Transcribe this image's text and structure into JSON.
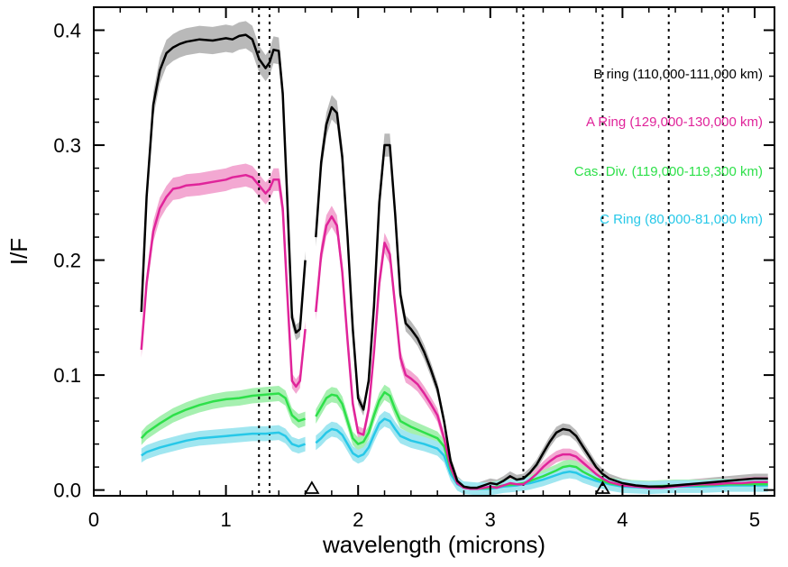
{
  "chart_data": {
    "type": "line",
    "xlabel": "wavelength (microns)",
    "ylabel": "I/F",
    "xlim": [
      0,
      5.15
    ],
    "ylim": [
      -0.005,
      0.42
    ],
    "x_ticks": [
      0,
      1,
      2,
      3,
      4,
      5
    ],
    "x_tick_labels": [
      "0",
      "1",
      "2",
      "3",
      "4",
      "5"
    ],
    "y_ticks": [
      0.0,
      0.1,
      0.2,
      0.3,
      0.4
    ],
    "y_tick_labels": [
      "0.0",
      "0.1",
      "0.2",
      "0.3",
      "0.4"
    ],
    "grid": false,
    "legend_position": "top-right",
    "vertical_dotted_lines_x": [
      1.25,
      1.33,
      3.25,
      3.85,
      4.35,
      4.76
    ],
    "triangle_markers_x": [
      1.65,
      3.85
    ],
    "series": [
      {
        "name": "B ring (110,000-111,000 km)",
        "color": "#000000",
        "band_color": "#b9b9b9",
        "x": [
          0.36,
          0.4,
          0.45,
          0.5,
          0.55,
          0.6,
          0.65,
          0.7,
          0.8,
          0.9,
          1.0,
          1.05,
          1.1,
          1.15,
          1.2,
          1.25,
          1.3,
          1.33,
          1.36,
          1.4,
          1.43,
          1.46,
          1.5,
          1.53,
          1.56,
          1.6,
          null,
          1.68,
          1.72,
          1.76,
          1.8,
          1.84,
          1.88,
          1.92,
          1.96,
          2.0,
          2.04,
          2.08,
          2.12,
          2.16,
          2.2,
          2.24,
          2.28,
          2.32,
          2.36,
          2.4,
          2.45,
          2.5,
          2.55,
          2.6,
          2.65,
          2.7,
          2.75,
          2.8,
          2.85,
          2.9,
          2.95,
          3.0,
          3.05,
          3.1,
          3.15,
          3.2,
          3.25,
          3.3,
          3.35,
          3.4,
          3.45,
          3.5,
          3.55,
          3.6,
          3.65,
          3.7,
          3.75,
          3.8,
          3.85,
          3.9,
          4.0,
          4.1,
          4.2,
          4.3,
          4.4,
          4.5,
          4.6,
          4.7,
          4.8,
          4.9,
          5.0,
          5.1
        ],
        "y": [
          0.155,
          0.255,
          0.335,
          0.365,
          0.38,
          0.385,
          0.388,
          0.39,
          0.392,
          0.391,
          0.393,
          0.392,
          0.395,
          0.396,
          0.392,
          0.375,
          0.367,
          0.372,
          0.383,
          0.382,
          0.345,
          0.265,
          0.15,
          0.137,
          0.14,
          0.2,
          null,
          0.22,
          0.285,
          0.318,
          0.333,
          0.328,
          0.29,
          0.22,
          0.14,
          0.08,
          0.07,
          0.095,
          0.16,
          0.25,
          0.3,
          0.3,
          0.24,
          0.17,
          0.145,
          0.14,
          0.132,
          0.12,
          0.105,
          0.088,
          0.06,
          0.025,
          0.008,
          0.003,
          0.002,
          0.002,
          0.004,
          0.006,
          0.005,
          0.008,
          0.012,
          0.009,
          0.01,
          0.015,
          0.022,
          0.032,
          0.042,
          0.05,
          0.053,
          0.052,
          0.047,
          0.038,
          0.029,
          0.02,
          0.014,
          0.01,
          0.006,
          0.004,
          0.003,
          0.003,
          0.004,
          0.005,
          0.006,
          0.007,
          0.008,
          0.009,
          0.01,
          0.01
        ]
      },
      {
        "name": "A Ring (129,000-130,000 km)",
        "color": "#e0249a",
        "band_color": "#f3a8d2",
        "x": [
          0.36,
          0.4,
          0.45,
          0.5,
          0.55,
          0.6,
          0.65,
          0.7,
          0.8,
          0.9,
          1.0,
          1.05,
          1.1,
          1.15,
          1.2,
          1.25,
          1.3,
          1.33,
          1.36,
          1.4,
          1.43,
          1.46,
          1.5,
          1.53,
          1.56,
          1.6,
          null,
          1.68,
          1.72,
          1.76,
          1.8,
          1.84,
          1.88,
          1.92,
          1.96,
          2.0,
          2.04,
          2.08,
          2.12,
          2.16,
          2.2,
          2.24,
          2.28,
          2.32,
          2.36,
          2.4,
          2.45,
          2.5,
          2.55,
          2.6,
          2.65,
          2.7,
          2.75,
          2.8,
          2.85,
          2.9,
          2.95,
          3.0,
          3.05,
          3.1,
          3.15,
          3.2,
          3.25,
          3.3,
          3.35,
          3.4,
          3.45,
          3.5,
          3.55,
          3.6,
          3.65,
          3.7,
          3.75,
          3.8,
          3.85,
          3.9,
          4.0,
          4.1,
          4.2,
          4.3,
          4.4,
          4.5,
          4.6,
          4.7,
          4.8,
          4.9,
          5.0,
          5.1
        ],
        "y": [
          0.122,
          0.18,
          0.225,
          0.245,
          0.255,
          0.262,
          0.263,
          0.265,
          0.266,
          0.268,
          0.27,
          0.272,
          0.273,
          0.274,
          0.272,
          0.265,
          0.258,
          0.262,
          0.27,
          0.27,
          0.245,
          0.18,
          0.095,
          0.09,
          0.095,
          0.14,
          null,
          0.155,
          0.205,
          0.23,
          0.238,
          0.23,
          0.19,
          0.13,
          0.075,
          0.05,
          0.048,
          0.07,
          0.12,
          0.18,
          0.215,
          0.205,
          0.16,
          0.115,
          0.1,
          0.097,
          0.092,
          0.084,
          0.075,
          0.065,
          0.045,
          0.02,
          0.006,
          0.002,
          0.001,
          0.001,
          0.002,
          0.003,
          0.002,
          0.004,
          0.006,
          0.005,
          0.005,
          0.009,
          0.014,
          0.02,
          0.025,
          0.029,
          0.031,
          0.031,
          0.029,
          0.024,
          0.019,
          0.014,
          0.01,
          0.007,
          0.004,
          0.003,
          0.002,
          0.002,
          0.003,
          0.004,
          0.005,
          0.005,
          0.006,
          0.006,
          0.007,
          0.007
        ]
      },
      {
        "name": "Cas. Div. (119,000-119,300 km)",
        "color": "#2ee04a",
        "band_color": "#a6f0b0",
        "x": [
          0.36,
          0.4,
          0.5,
          0.6,
          0.7,
          0.8,
          0.9,
          1.0,
          1.1,
          1.2,
          1.3,
          1.4,
          1.45,
          1.5,
          1.55,
          1.6,
          null,
          1.68,
          1.72,
          1.76,
          1.8,
          1.84,
          1.88,
          1.92,
          1.96,
          2.0,
          2.04,
          2.08,
          2.12,
          2.16,
          2.2,
          2.24,
          2.28,
          2.32,
          2.4,
          2.5,
          2.6,
          2.65,
          2.7,
          2.75,
          2.8,
          2.9,
          3.0,
          3.1,
          3.2,
          3.25,
          3.3,
          3.4,
          3.5,
          3.55,
          3.6,
          3.65,
          3.7,
          3.8,
          3.9,
          4.0,
          4.2,
          4.4,
          4.6,
          4.8,
          5.0,
          5.1
        ],
        "y": [
          0.045,
          0.05,
          0.058,
          0.065,
          0.07,
          0.074,
          0.077,
          0.079,
          0.08,
          0.082,
          0.083,
          0.084,
          0.08,
          0.065,
          0.06,
          0.062,
          null,
          0.064,
          0.072,
          0.08,
          0.083,
          0.082,
          0.075,
          0.06,
          0.045,
          0.04,
          0.042,
          0.05,
          0.065,
          0.078,
          0.085,
          0.082,
          0.07,
          0.06,
          0.055,
          0.05,
          0.045,
          0.038,
          0.018,
          0.006,
          0.002,
          0.001,
          0.002,
          0.004,
          0.005,
          0.006,
          0.008,
          0.012,
          0.017,
          0.02,
          0.021,
          0.02,
          0.016,
          0.01,
          0.006,
          0.004,
          0.003,
          0.004,
          0.004,
          0.005,
          0.005,
          0.005
        ]
      },
      {
        "name": "C Ring (80,000-81,000 km)",
        "color": "#27c8e8",
        "band_color": "#a0e6f0",
        "x": [
          0.36,
          0.4,
          0.5,
          0.6,
          0.7,
          0.8,
          0.9,
          1.0,
          1.1,
          1.2,
          1.3,
          1.4,
          1.45,
          1.5,
          1.55,
          1.6,
          null,
          1.68,
          1.72,
          1.76,
          1.8,
          1.84,
          1.88,
          1.92,
          1.96,
          2.0,
          2.04,
          2.08,
          2.12,
          2.16,
          2.2,
          2.24,
          2.28,
          2.32,
          2.4,
          2.5,
          2.6,
          2.65,
          2.7,
          2.75,
          2.8,
          2.9,
          3.0,
          3.1,
          3.2,
          3.25,
          3.3,
          3.4,
          3.5,
          3.55,
          3.6,
          3.65,
          3.7,
          3.8,
          3.9,
          4.0,
          4.2,
          4.4,
          4.6,
          4.8,
          5.0,
          5.1
        ],
        "y": [
          0.03,
          0.033,
          0.037,
          0.04,
          0.043,
          0.045,
          0.046,
          0.047,
          0.048,
          0.049,
          0.049,
          0.05,
          0.047,
          0.04,
          0.038,
          0.04,
          null,
          0.041,
          0.045,
          0.05,
          0.053,
          0.052,
          0.048,
          0.04,
          0.032,
          0.029,
          0.031,
          0.037,
          0.048,
          0.058,
          0.062,
          0.06,
          0.053,
          0.047,
          0.043,
          0.04,
          0.036,
          0.03,
          0.014,
          0.005,
          0.002,
          0.001,
          0.001,
          0.003,
          0.004,
          0.005,
          0.006,
          0.009,
          0.013,
          0.015,
          0.016,
          0.015,
          0.012,
          0.008,
          0.005,
          0.003,
          0.002,
          0.003,
          0.003,
          0.004,
          0.004,
          0.004
        ]
      }
    ]
  }
}
